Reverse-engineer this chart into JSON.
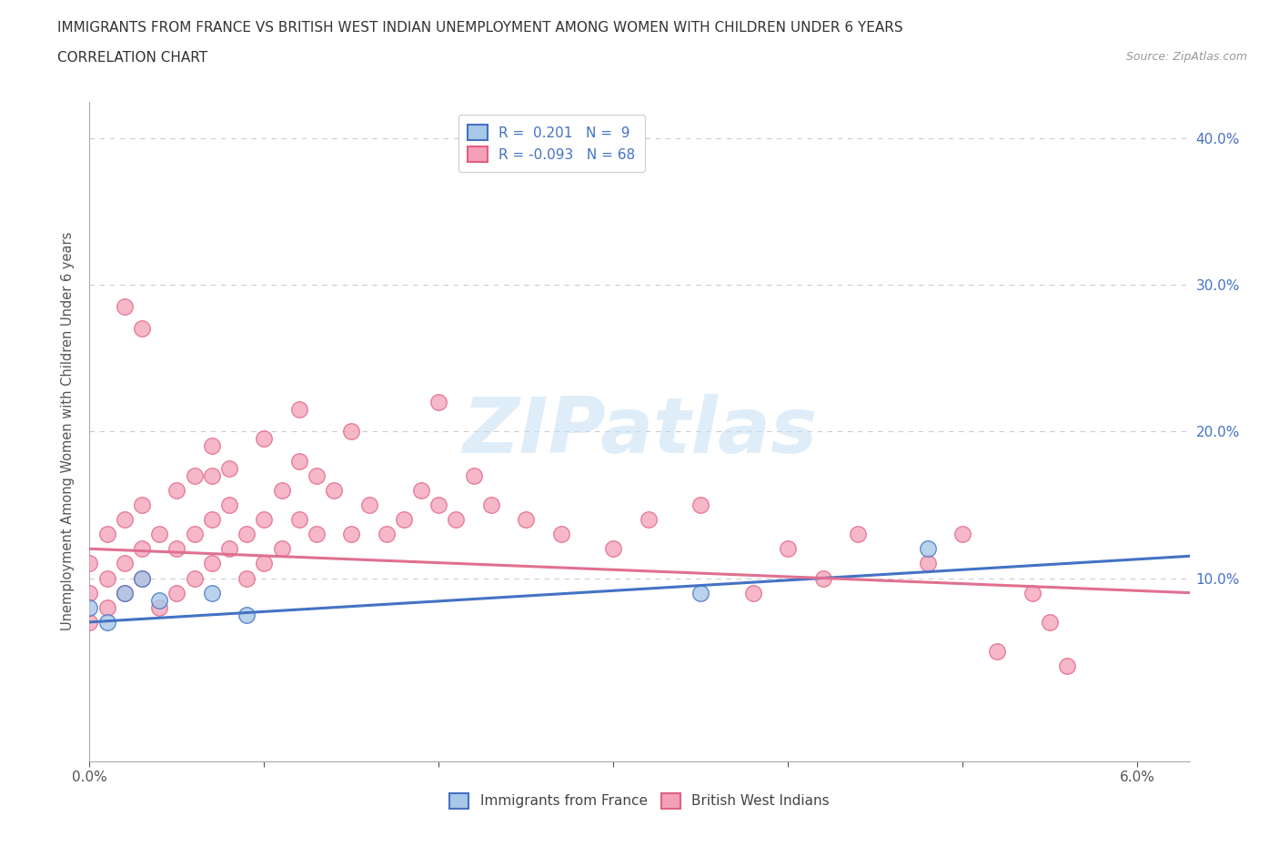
{
  "title_line1": "IMMIGRANTS FROM FRANCE VS BRITISH WEST INDIAN UNEMPLOYMENT AMONG WOMEN WITH CHILDREN UNDER 6 YEARS",
  "title_line2": "CORRELATION CHART",
  "source_text": "Source: ZipAtlas.com",
  "ylabel": "Unemployment Among Women with Children Under 6 years",
  "xlim": [
    0.0,
    0.063
  ],
  "ylim": [
    -0.025,
    0.425
  ],
  "xtick_vals": [
    0.0,
    0.01,
    0.02,
    0.03,
    0.04,
    0.05,
    0.06
  ],
  "xticklabels": [
    "0.0%",
    "",
    "",
    "",
    "",
    "",
    "6.0%"
  ],
  "ytick_vals": [
    0.0,
    0.1,
    0.2,
    0.3,
    0.4
  ],
  "yticklabels_right": [
    "",
    "10.0%",
    "20.0%",
    "30.0%",
    "40.0%"
  ],
  "france_color": "#a8c8e8",
  "france_edge_color": "#4472c4",
  "bwi_color": "#f4a0b8",
  "bwi_edge_color": "#e06080",
  "france_line_color": "#4472c4",
  "bwi_line_color": "#e07090",
  "right_axis_tick_color": "#4472c4",
  "france_scatter_x": [
    0.0,
    0.001,
    0.002,
    0.003,
    0.004,
    0.007,
    0.009,
    0.035,
    0.048
  ],
  "france_scatter_y": [
    0.08,
    0.07,
    0.09,
    0.1,
    0.085,
    0.09,
    0.075,
    0.09,
    0.12
  ],
  "bwi_scatter_x": [
    0.0,
    0.0,
    0.0,
    0.001,
    0.001,
    0.001,
    0.002,
    0.002,
    0.002,
    0.003,
    0.003,
    0.003,
    0.004,
    0.004,
    0.005,
    0.005,
    0.005,
    0.006,
    0.006,
    0.006,
    0.007,
    0.007,
    0.007,
    0.008,
    0.008,
    0.009,
    0.009,
    0.01,
    0.01,
    0.011,
    0.011,
    0.012,
    0.012,
    0.013,
    0.013,
    0.014,
    0.015,
    0.016,
    0.017,
    0.018,
    0.019,
    0.02,
    0.021,
    0.022,
    0.023,
    0.025,
    0.027,
    0.03,
    0.032,
    0.035,
    0.038,
    0.04,
    0.042,
    0.044,
    0.048,
    0.05,
    0.052,
    0.054,
    0.055,
    0.056,
    0.002,
    0.003,
    0.007,
    0.008,
    0.01,
    0.012,
    0.015,
    0.02
  ],
  "bwi_scatter_y": [
    0.07,
    0.09,
    0.11,
    0.08,
    0.1,
    0.13,
    0.09,
    0.11,
    0.14,
    0.1,
    0.12,
    0.15,
    0.08,
    0.13,
    0.09,
    0.12,
    0.16,
    0.1,
    0.13,
    0.17,
    0.11,
    0.14,
    0.17,
    0.12,
    0.15,
    0.1,
    0.13,
    0.11,
    0.14,
    0.12,
    0.16,
    0.14,
    0.18,
    0.13,
    0.17,
    0.16,
    0.13,
    0.15,
    0.13,
    0.14,
    0.16,
    0.15,
    0.14,
    0.17,
    0.15,
    0.14,
    0.13,
    0.12,
    0.14,
    0.15,
    0.09,
    0.12,
    0.1,
    0.13,
    0.11,
    0.13,
    0.05,
    0.09,
    0.07,
    0.04,
    0.285,
    0.27,
    0.19,
    0.175,
    0.195,
    0.215,
    0.2,
    0.22
  ],
  "france_trend_x0": 0.0,
  "france_trend_y0": 0.07,
  "france_trend_x1": 0.063,
  "france_trend_y1": 0.115,
  "bwi_trend_x0": 0.0,
  "bwi_trend_y0": 0.12,
  "bwi_trend_x1": 0.063,
  "bwi_trend_y1": 0.09,
  "watermark_text": "ZIPatlas",
  "watermark_color": "#c5dff5",
  "background_color": "#ffffff",
  "grid_color": "#cccccc",
  "legend1_label": "R =  0.201   N =  9",
  "legend2_label": "R = -0.093   N = 68",
  "bottom_legend1": "Immigrants from France",
  "bottom_legend2": "British West Indians"
}
